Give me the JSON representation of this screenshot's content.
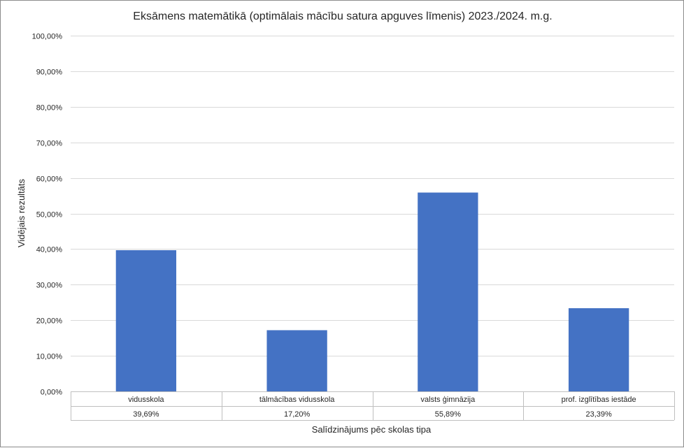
{
  "chart_data": {
    "type": "bar",
    "title": "Eksāmens matemātikā (optimālais mācību satura apguves līmenis) 2023./2024. m.g.",
    "xlabel": "Salīdzinājums pēc skolas tipa",
    "ylabel": "Vidējais rezultāts",
    "ylim": [
      0,
      100
    ],
    "ytick_values": [
      0,
      10,
      20,
      30,
      40,
      50,
      60,
      70,
      80,
      90,
      100
    ],
    "ytick_labels": [
      "0,00%",
      "10,00%",
      "20,00%",
      "30,00%",
      "40,00%",
      "50,00%",
      "60,00%",
      "70,00%",
      "80,00%",
      "90,00%",
      "100,00%"
    ],
    "categories": [
      "vidusskola",
      "tālmācības vidusskola",
      "valsts ģimnāzija",
      "prof. izglītības iestāde"
    ],
    "values": [
      39.69,
      17.2,
      55.89,
      23.39
    ],
    "value_labels": [
      "39,69%",
      "17,20%",
      "55,89%",
      "23,39%"
    ],
    "grid": true,
    "legend": "none",
    "data_table": true,
    "bar_color": "#4472C4"
  }
}
